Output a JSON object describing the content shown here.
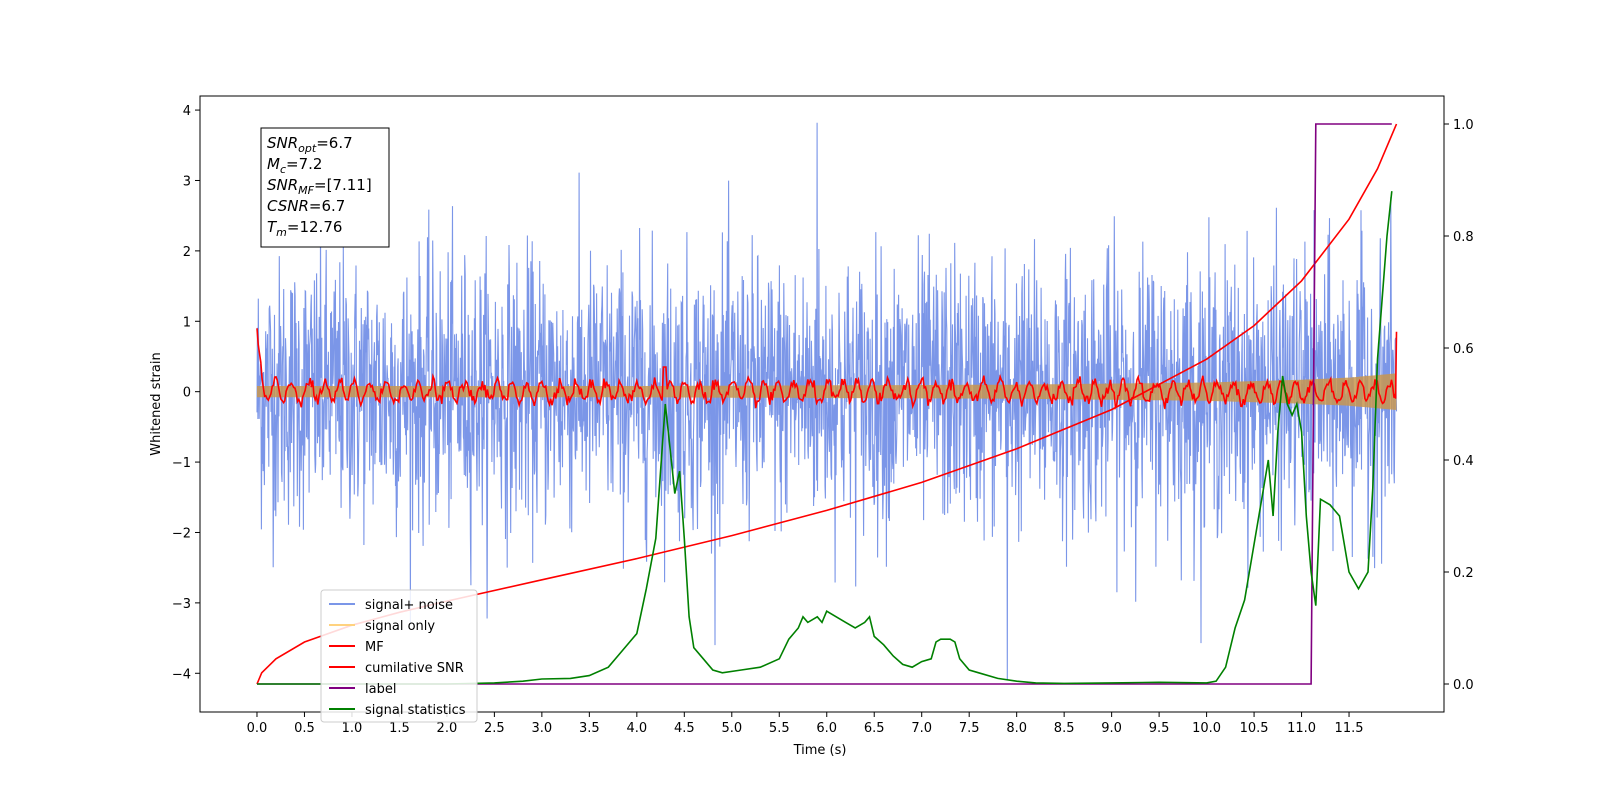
{
  "chart_data": {
    "type": "line",
    "xlabel": "Time (s)",
    "ylabel": "Whitened strain",
    "xlim": [
      -0.6,
      12.5
    ],
    "ylim": [
      -4.55,
      4.2
    ],
    "y2lim": [
      -0.05,
      1.05
    ],
    "xticks": [
      0.0,
      0.5,
      1.0,
      1.5,
      2.0,
      2.5,
      3.0,
      3.5,
      4.0,
      4.5,
      5.0,
      5.5,
      6.0,
      6.5,
      7.0,
      7.5,
      8.0,
      8.5,
      9.0,
      9.5,
      10.0,
      10.5,
      11.0,
      11.5
    ],
    "xtick_labels": [
      "0.0",
      "0.5",
      "1.0",
      "1.5",
      "2.0",
      "2.5",
      "3.0",
      "3.5",
      "4.0",
      "4.5",
      "5.0",
      "5.5",
      "6.0",
      "6.5",
      "7.0",
      "7.5",
      "8.0",
      "8.5",
      "9.0",
      "9.5",
      "10.0",
      "10.5",
      "11.0",
      "11.5"
    ],
    "yticks": [
      -4,
      -3,
      -2,
      -1,
      0,
      1,
      2,
      3,
      4
    ],
    "ytick_labels": [
      "−4",
      "−3",
      "−2",
      "−1",
      "0",
      "1",
      "2",
      "3",
      "4"
    ],
    "y2ticks": [
      0.0,
      0.2,
      0.4,
      0.6,
      0.8,
      1.0
    ],
    "y2tick_labels": [
      "0.0",
      "0.2",
      "0.4",
      "0.6",
      "0.8",
      "1.0"
    ],
    "annotation": [
      {
        "base": "SNR",
        "sub": "opt",
        "rest": "=6.7"
      },
      {
        "base": "M",
        "sub": "c",
        "rest": "=7.2"
      },
      {
        "base": "SNR",
        "sub": "MF",
        "rest": "=[7.11]"
      },
      {
        "base": "CSNR",
        "sub": "",
        "rest": "=6.7"
      },
      {
        "base": "T",
        "sub": "m",
        "rest": "=12.76"
      }
    ],
    "legend": {
      "position": "lower-left",
      "entries": [
        {
          "label": "signal+ noise",
          "color": "#7b96e8"
        },
        {
          "label": "signal only",
          "color": "#ffd27f"
        },
        {
          "label": "MF",
          "color": "#ff0000"
        },
        {
          "label": "cumilative SNR",
          "color": "#ff0000"
        },
        {
          "label": "label",
          "color": "#800080"
        },
        {
          "label": "signal statistics",
          "color": "#008000"
        }
      ]
    },
    "series": [
      {
        "name": "signal+ noise",
        "axis": "left",
        "color": "#7b96e8",
        "description_values": {
          "t_start": 0.0,
          "t_end": 12.0,
          "mean": 0.0,
          "std": 1.0,
          "max": 3.82,
          "min": -4.1
        }
      },
      {
        "name": "signal only",
        "axis": "left",
        "color": "#d2a050",
        "envelope": {
          "x": [
            0.0,
            4.0,
            8.0,
            10.0,
            11.0,
            11.5,
            12.0
          ],
          "amp": [
            0.08,
            0.08,
            0.1,
            0.13,
            0.17,
            0.2,
            0.26
          ]
        }
      },
      {
        "name": "MF",
        "axis": "left",
        "color": "#ff0000",
        "description_values": {
          "t_start": 0.0,
          "t_end": 12.0,
          "start_value": 0.9,
          "end_value": 0.85,
          "typical_amplitude": 0.15
        }
      },
      {
        "name": "cumilative SNR",
        "axis": "right",
        "color": "#ff0000",
        "x": [
          0.0,
          0.05,
          0.2,
          0.5,
          1.0,
          1.5,
          2.0,
          3.0,
          4.0,
          5.0,
          6.0,
          7.0,
          8.0,
          9.0,
          10.0,
          10.5,
          11.0,
          11.5,
          11.8,
          12.0
        ],
        "y": [
          0.0,
          0.02,
          0.045,
          0.075,
          0.105,
          0.128,
          0.148,
          0.186,
          0.224,
          0.265,
          0.31,
          0.36,
          0.42,
          0.49,
          0.58,
          0.64,
          0.72,
          0.83,
          0.92,
          1.0
        ]
      },
      {
        "name": "label",
        "axis": "right",
        "color": "#800080",
        "x": [
          0.0,
          11.1,
          11.15,
          11.95
        ],
        "y": [
          0.0,
          0.0,
          1.0,
          1.0
        ]
      },
      {
        "name": "signal statistics",
        "axis": "right",
        "color": "#008000",
        "x": [
          0.0,
          0.5,
          1.0,
          2.0,
          2.5,
          2.8,
          3.0,
          3.3,
          3.5,
          3.7,
          3.8,
          4.0,
          4.1,
          4.2,
          4.3,
          4.35,
          4.4,
          4.45,
          4.5,
          4.55,
          4.6,
          4.7,
          4.8,
          4.9,
          5.1,
          5.3,
          5.5,
          5.6,
          5.7,
          5.75,
          5.8,
          5.9,
          5.95,
          6.0,
          6.1,
          6.2,
          6.3,
          6.4,
          6.45,
          6.5,
          6.6,
          6.7,
          6.8,
          6.9,
          7.0,
          7.1,
          7.15,
          7.2,
          7.3,
          7.35,
          7.4,
          7.5,
          7.6,
          7.8,
          8.0,
          8.2,
          8.5,
          9.0,
          9.5,
          10.0,
          10.1,
          10.2,
          10.3,
          10.4,
          10.5,
          10.6,
          10.65,
          10.7,
          10.75,
          10.8,
          10.85,
          10.9,
          10.95,
          11.0,
          11.05,
          11.1,
          11.15,
          11.2,
          11.3,
          11.4,
          11.5,
          11.6,
          11.7,
          11.75,
          11.8,
          11.9,
          11.95
        ],
        "y": [
          0.0,
          0.0,
          0.0,
          0.0,
          0.002,
          0.005,
          0.009,
          0.01,
          0.015,
          0.03,
          0.05,
          0.09,
          0.17,
          0.26,
          0.5,
          0.42,
          0.34,
          0.38,
          0.26,
          0.12,
          0.065,
          0.045,
          0.025,
          0.02,
          0.025,
          0.03,
          0.045,
          0.08,
          0.1,
          0.12,
          0.11,
          0.12,
          0.11,
          0.13,
          0.12,
          0.11,
          0.1,
          0.11,
          0.12,
          0.085,
          0.07,
          0.05,
          0.035,
          0.03,
          0.04,
          0.045,
          0.075,
          0.08,
          0.08,
          0.075,
          0.045,
          0.025,
          0.02,
          0.01,
          0.005,
          0.002,
          0.001,
          0.002,
          0.003,
          0.002,
          0.005,
          0.03,
          0.1,
          0.15,
          0.25,
          0.35,
          0.4,
          0.3,
          0.45,
          0.55,
          0.5,
          0.48,
          0.5,
          0.45,
          0.3,
          0.2,
          0.14,
          0.33,
          0.32,
          0.3,
          0.2,
          0.17,
          0.2,
          0.35,
          0.58,
          0.8,
          0.88
        ]
      }
    ]
  }
}
